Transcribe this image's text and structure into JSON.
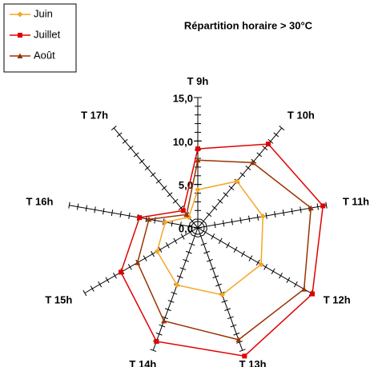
{
  "chart_data": {
    "type": "radar",
    "title": "Répartition horaire > 30°C",
    "categories": [
      "T  9h",
      "T  10h",
      "T  11h",
      "T  12h",
      "T  13h",
      "T  14h",
      "T  15h",
      "T  16h",
      "T  17h"
    ],
    "series": [
      {
        "name": "Juin",
        "color": "#f5a623",
        "values": [
          4.4,
          7.0,
          7.6,
          8.4,
          8.2,
          7.0,
          5.4,
          3.8,
          1.6
        ]
      },
      {
        "name": "Juillet",
        "color": "#e00000",
        "values": [
          9.1,
          12.6,
          14.6,
          15.2,
          15.7,
          13.9,
          10.2,
          6.8,
          2.6
        ]
      },
      {
        "name": "Août",
        "color": "#993300",
        "values": [
          7.8,
          9.8,
          13.2,
          14.1,
          13.7,
          11.4,
          8.0,
          5.7,
          2.0
        ]
      }
    ],
    "ylim": [
      0,
      15
    ],
    "yticks": [
      {
        "value": 0,
        "label": "0,0"
      },
      {
        "value": 5,
        "label": "5,0"
      },
      {
        "value": 10,
        "label": "10,0"
      },
      {
        "value": 15,
        "label": "15,0"
      }
    ],
    "legend": "top-left"
  }
}
